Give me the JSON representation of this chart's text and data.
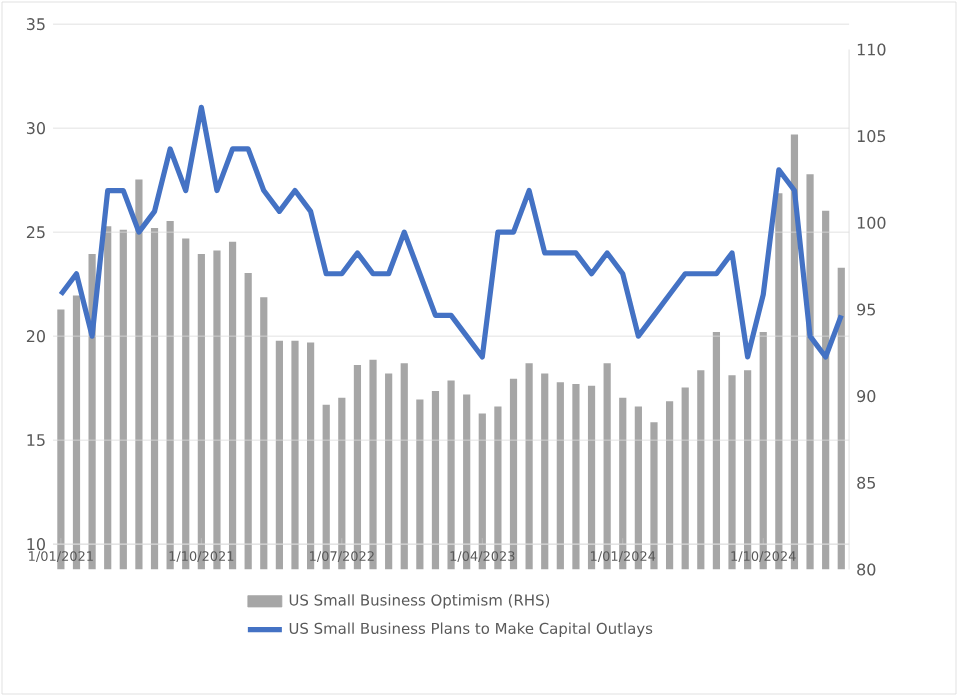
{
  "chart_data": {
    "type": "bar",
    "categories": [
      "1/01/2021",
      null,
      null,
      null,
      null,
      null,
      null,
      null,
      null,
      "1/10/2021",
      null,
      null,
      null,
      null,
      null,
      null,
      null,
      null,
      "1/07/2022",
      null,
      null,
      null,
      null,
      null,
      null,
      null,
      null,
      "1/04/2023",
      null,
      null,
      null,
      null,
      null,
      null,
      null,
      null,
      "1/01/2024",
      null,
      null,
      null,
      null,
      null,
      null,
      null,
      null,
      "1/10/2024",
      null,
      null,
      null,
      null,
      null
    ],
    "series": [
      {
        "name": "US Small Business Optimism (RHS)",
        "axis": "y2",
        "color": "#a6a6a6",
        "values": [
          95.0,
          95.8,
          98.2,
          99.8,
          99.6,
          102.5,
          99.7,
          100.1,
          99.1,
          98.2,
          98.4,
          98.9,
          97.1,
          95.7,
          93.2,
          93.2,
          93.1,
          89.5,
          89.9,
          91.8,
          92.1,
          91.3,
          91.9,
          89.8,
          90.3,
          90.9,
          90.1,
          89.0,
          89.4,
          91.0,
          91.9,
          91.3,
          90.8,
          90.7,
          90.6,
          91.9,
          89.9,
          89.4,
          88.5,
          89.7,
          90.5,
          91.5,
          93.7,
          91.2,
          91.5,
          93.7,
          101.7,
          105.1,
          102.8,
          100.7,
          97.4
        ]
      },
      {
        "name": "US Small Business Plans to Make Capital Outlays",
        "type": "line",
        "color": "#4472c4",
        "values": [
          22,
          23,
          20,
          27,
          27,
          25,
          26,
          29,
          27,
          31,
          27,
          29,
          29,
          27,
          26,
          27,
          26,
          23,
          23,
          24,
          23,
          23,
          25,
          23,
          21,
          21,
          20,
          19,
          25,
          25,
          27,
          24,
          24,
          24,
          23,
          24,
          23,
          20,
          21,
          22,
          23,
          23,
          23,
          24,
          19,
          22,
          28,
          27,
          20,
          19,
          21
        ]
      }
    ],
    "ylim": [
      10,
      35
    ],
    "yticks": [
      10,
      15,
      20,
      25,
      30,
      35
    ],
    "y2lim": [
      80,
      110
    ],
    "y2ticks": [
      80,
      85,
      90,
      95,
      100,
      105,
      110
    ],
    "grid": "y",
    "legend": "bottom",
    "marker": "none",
    "line_style": "solid"
  }
}
